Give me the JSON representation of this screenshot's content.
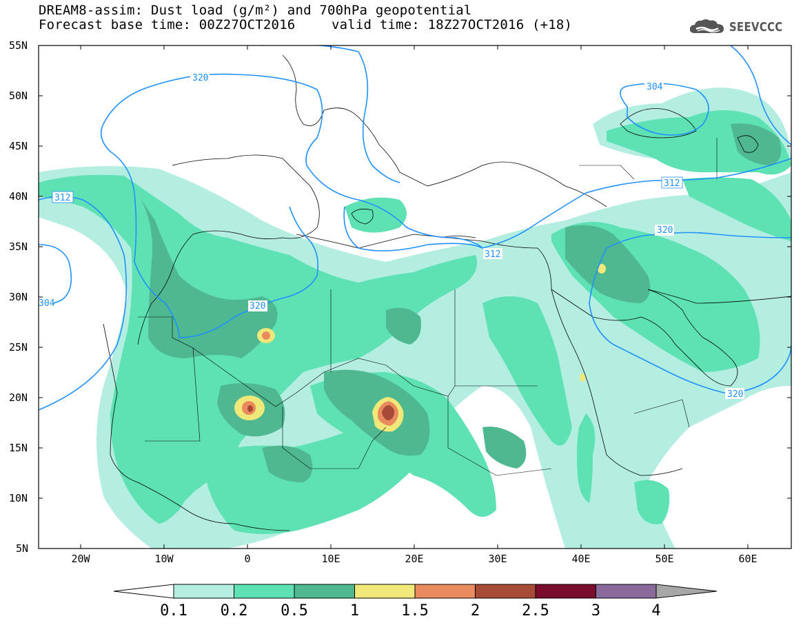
{
  "header": {
    "title_line1": "DREAM8-assim: Dust load (g/m²) and 700hPa geopotential",
    "base_time": "Forecast base time: 00Z27OCT2016",
    "valid_time": "valid time: 18Z27OCT2016 (+18)",
    "logo_text": "SEEVCCC",
    "logo_icon": "cloud-icon"
  },
  "axes": {
    "lat_labels": [
      "55N",
      "50N",
      "45N",
      "40N",
      "35N",
      "30N",
      "25N",
      "20N",
      "15N",
      "10N",
      "5N"
    ],
    "lon_labels": [
      "20W",
      "10W",
      "0",
      "10E",
      "20E",
      "30E",
      "40E",
      "50E",
      "60E"
    ]
  },
  "contours": {
    "color": "#1e90ff",
    "labels": [
      "320",
      "312",
      "304",
      "312",
      "320",
      "304",
      "312",
      "320",
      "320"
    ]
  },
  "colorbar": {
    "levels": [
      "0.1",
      "0.2",
      "0.5",
      "1",
      "1.5",
      "2",
      "2.5",
      "3",
      "4"
    ],
    "colors": [
      "#b4eee0",
      "#5ee2b4",
      "#50b890",
      "#f0e878",
      "#e98a5f",
      "#a84a38",
      "#7a0c2c",
      "#8a6a9a",
      "#a7a7a7"
    ]
  }
}
